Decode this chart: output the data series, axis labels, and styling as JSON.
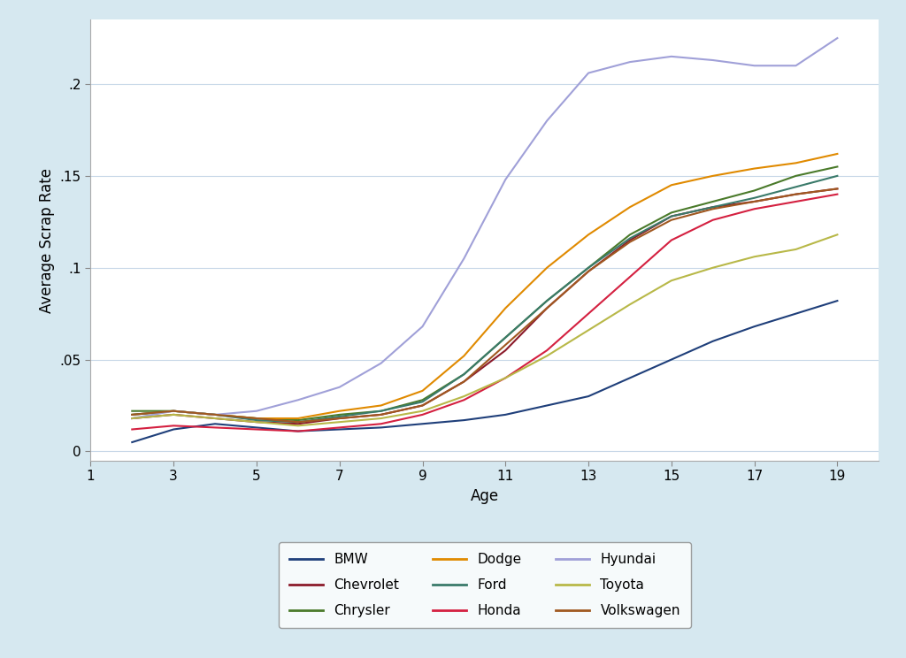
{
  "title": "",
  "xlabel": "Age",
  "ylabel": "Average Scrap Rate",
  "background_color": "#d6e8f0",
  "plot_background": "#ffffff",
  "xlim": [
    1,
    20
  ],
  "ylim": [
    -0.005,
    0.235
  ],
  "xticks": [
    1,
    3,
    5,
    7,
    9,
    11,
    13,
    15,
    17,
    19
  ],
  "yticks": [
    0,
    0.05,
    0.1,
    0.15,
    0.2
  ],
  "ytick_labels": [
    "0",
    ".05",
    ".1",
    ".15",
    ".2"
  ],
  "series": {
    "BMW": {
      "color": "#1f3f7a",
      "ages": [
        2,
        3,
        4,
        5,
        6,
        7,
        8,
        9,
        10,
        11,
        12,
        13,
        14,
        15,
        16,
        17,
        18,
        19
      ],
      "values": [
        0.005,
        0.012,
        0.015,
        0.013,
        0.011,
        0.012,
        0.013,
        0.015,
        0.017,
        0.02,
        0.025,
        0.03,
        0.04,
        0.05,
        0.06,
        0.068,
        0.075,
        0.082
      ]
    },
    "Chevrolet": {
      "color": "#8b1a2a",
      "ages": [
        2,
        3,
        4,
        5,
        6,
        7,
        8,
        9,
        10,
        11,
        12,
        13,
        14,
        15,
        16,
        17,
        18,
        19
      ],
      "values": [
        0.018,
        0.02,
        0.018,
        0.016,
        0.015,
        0.018,
        0.02,
        0.025,
        0.038,
        0.055,
        0.078,
        0.098,
        0.115,
        0.128,
        0.133,
        0.136,
        0.14,
        0.143
      ]
    },
    "Chrysler": {
      "color": "#4a7a2a",
      "ages": [
        2,
        3,
        4,
        5,
        6,
        7,
        8,
        9,
        10,
        11,
        12,
        13,
        14,
        15,
        16,
        17,
        18,
        19
      ],
      "values": [
        0.022,
        0.022,
        0.02,
        0.018,
        0.017,
        0.02,
        0.022,
        0.028,
        0.042,
        0.062,
        0.082,
        0.1,
        0.118,
        0.13,
        0.136,
        0.142,
        0.15,
        0.155
      ]
    },
    "Dodge": {
      "color": "#e08a00",
      "ages": [
        2,
        3,
        4,
        5,
        6,
        7,
        8,
        9,
        10,
        11,
        12,
        13,
        14,
        15,
        16,
        17,
        18,
        19
      ],
      "values": [
        0.02,
        0.022,
        0.02,
        0.018,
        0.018,
        0.022,
        0.025,
        0.033,
        0.052,
        0.078,
        0.1,
        0.118,
        0.133,
        0.145,
        0.15,
        0.154,
        0.157,
        0.162
      ]
    },
    "Ford": {
      "color": "#3a7a6a",
      "ages": [
        2,
        3,
        4,
        5,
        6,
        7,
        8,
        9,
        10,
        11,
        12,
        13,
        14,
        15,
        16,
        17,
        18,
        19
      ],
      "values": [
        0.02,
        0.022,
        0.02,
        0.017,
        0.016,
        0.019,
        0.022,
        0.027,
        0.042,
        0.062,
        0.082,
        0.1,
        0.116,
        0.128,
        0.133,
        0.138,
        0.144,
        0.15
      ]
    },
    "Honda": {
      "color": "#d42040",
      "ages": [
        2,
        3,
        4,
        5,
        6,
        7,
        8,
        9,
        10,
        11,
        12,
        13,
        14,
        15,
        16,
        17,
        18,
        19
      ],
      "values": [
        0.012,
        0.014,
        0.013,
        0.012,
        0.011,
        0.013,
        0.015,
        0.02,
        0.028,
        0.04,
        0.055,
        0.075,
        0.095,
        0.115,
        0.126,
        0.132,
        0.136,
        0.14
      ]
    },
    "Hyundai": {
      "color": "#a0a0d8",
      "ages": [
        2,
        3,
        4,
        5,
        6,
        7,
        8,
        9,
        10,
        11,
        12,
        13,
        14,
        15,
        16,
        17,
        18,
        19
      ],
      "values": [
        0.018,
        0.022,
        0.02,
        0.022,
        0.028,
        0.035,
        0.048,
        0.068,
        0.105,
        0.148,
        0.18,
        0.206,
        0.212,
        0.215,
        0.213,
        0.21,
        0.21,
        0.225
      ]
    },
    "Toyota": {
      "color": "#b8b848",
      "ages": [
        2,
        3,
        4,
        5,
        6,
        7,
        8,
        9,
        10,
        11,
        12,
        13,
        14,
        15,
        16,
        17,
        18,
        19
      ],
      "values": [
        0.018,
        0.02,
        0.018,
        0.016,
        0.014,
        0.016,
        0.018,
        0.022,
        0.03,
        0.04,
        0.052,
        0.066,
        0.08,
        0.093,
        0.1,
        0.106,
        0.11,
        0.118
      ]
    },
    "Volkswagen": {
      "color": "#a05820",
      "ages": [
        2,
        3,
        4,
        5,
        6,
        7,
        8,
        9,
        10,
        11,
        12,
        13,
        14,
        15,
        16,
        17,
        18,
        19
      ],
      "values": [
        0.02,
        0.022,
        0.02,
        0.018,
        0.016,
        0.018,
        0.02,
        0.025,
        0.038,
        0.058,
        0.078,
        0.098,
        0.114,
        0.126,
        0.132,
        0.136,
        0.14,
        0.143
      ]
    }
  },
  "legend_order": [
    "BMW",
    "Chevrolet",
    "Chrysler",
    "Dodge",
    "Ford",
    "Honda",
    "Hyundai",
    "Toyota",
    "Volkswagen"
  ]
}
